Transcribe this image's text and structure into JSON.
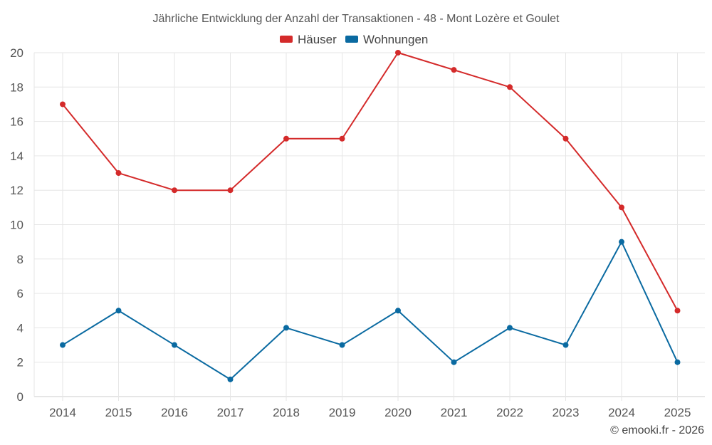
{
  "chart_data": {
    "type": "line",
    "title": "Jährliche Entwicklung der Anzahl der Transaktionen - 48 - Mont Lozère et Goulet",
    "x": [
      "2014",
      "2015",
      "2016",
      "2017",
      "2018",
      "2019",
      "2020",
      "2021",
      "2022",
      "2023",
      "2024",
      "2025"
    ],
    "series": [
      {
        "name": "Häuser",
        "color": "#d42a2a",
        "values": [
          17,
          13,
          12,
          12,
          15,
          15,
          20,
          19,
          18,
          15,
          11,
          5
        ]
      },
      {
        "name": "Wohnungen",
        "color": "#0a6aa1",
        "values": [
          3,
          5,
          3,
          1,
          4,
          3,
          5,
          2,
          4,
          3,
          9,
          2
        ]
      }
    ],
    "ylim": [
      0,
      20
    ],
    "yticks": [
      0,
      2,
      4,
      6,
      8,
      10,
      12,
      14,
      16,
      18,
      20
    ],
    "xlabel": "",
    "ylabel": "",
    "grid": true,
    "legend_position": "top-center"
  },
  "credit": "© emooki.fr - 2026"
}
